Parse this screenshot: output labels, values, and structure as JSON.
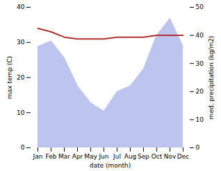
{
  "chart_data": {
    "type": "line",
    "xlabel": "date (month)",
    "ylabel": "max temp (C)",
    "y2label": "med. precipitation (kg/m2)",
    "categories": [
      "Jan",
      "Feb",
      "Mar",
      "Apr",
      "May",
      "Jun",
      "Jul",
      "Aug",
      "Sep",
      "Oct",
      "Nov",
      "Dec"
    ],
    "series": [
      {
        "type": "area",
        "axis": "y2",
        "color": "#bdc5ef",
        "values": [
          36,
          38,
          32,
          22,
          16,
          13,
          20,
          22,
          28,
          40,
          46,
          36
        ]
      },
      {
        "type": "line",
        "color": "#b03030",
        "values": [
          34,
          33,
          31.5,
          31,
          31,
          31,
          31.5,
          31.5,
          31.5,
          32,
          32,
          32
        ]
      }
    ],
    "ylim": [
      0,
      40
    ],
    "yticks": [
      0,
      10,
      20,
      30,
      40
    ],
    "y2lim": [
      0,
      50
    ],
    "y2ticks": [
      0,
      10,
      20,
      30,
      40,
      50
    ],
    "grid": false
  }
}
